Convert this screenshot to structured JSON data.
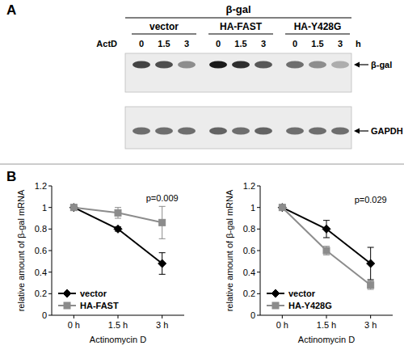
{
  "panel_labels": [
    "A",
    "B"
  ],
  "blot": {
    "probe_header": "β-gal",
    "groups": [
      "vector",
      "HA-FAST",
      "HA-Y428G"
    ],
    "treatment_label": "ActD",
    "times": [
      0,
      1.5,
      3
    ],
    "time_unit": "h",
    "bands": [
      {
        "label": "β-gal",
        "intensities": [
          0.8,
          0.75,
          0.45,
          1.0,
          0.9,
          0.7,
          0.6,
          0.45,
          0.3
        ]
      },
      {
        "label": "GAPDH",
        "intensities": [
          0.6,
          0.6,
          0.6,
          0.65,
          0.6,
          0.65,
          0.6,
          0.6,
          0.6
        ]
      }
    ]
  },
  "chart_data": [
    {
      "type": "line",
      "categories": [
        "0 h",
        "1.5 h",
        "3 h"
      ],
      "x_label": "Actinomycin D",
      "y_label": "relative amount of β-gal mRNA",
      "ylim": [
        0,
        1.2
      ],
      "yticks": [
        0,
        0.2,
        0.4,
        0.6,
        0.8,
        1,
        1.2
      ],
      "annotation": "p=0.009",
      "legend": "lower left",
      "series": [
        {
          "name": "vector",
          "color": "#000000",
          "marker": "diamond",
          "values": [
            1,
            0.8,
            0.48
          ],
          "errors": [
            0,
            0.02,
            0.1
          ]
        },
        {
          "name": "HA-FAST",
          "color": "#8c8c8c",
          "marker": "square",
          "values": [
            1,
            0.95,
            0.86
          ],
          "errors": [
            0,
            0.05,
            0.15
          ]
        }
      ]
    },
    {
      "type": "line",
      "categories": [
        "0 h",
        "1.5 h",
        "3 h"
      ],
      "x_label": "Actinomycin D",
      "y_label": "relative amount of β-gal mRNA",
      "ylim": [
        0,
        1.2
      ],
      "yticks": [
        0,
        0.2,
        0.4,
        0.6,
        0.8,
        1,
        1.2
      ],
      "annotation": "p=0.029",
      "legend": "lower left",
      "series": [
        {
          "name": "vector",
          "color": "#000000",
          "marker": "diamond",
          "values": [
            1,
            0.8,
            0.48
          ],
          "errors": [
            0,
            0.08,
            0.15
          ]
        },
        {
          "name": "HA-Y428G",
          "color": "#8c8c8c",
          "marker": "square",
          "values": [
            1,
            0.6,
            0.28
          ],
          "errors": [
            0,
            0.04,
            0.04
          ]
        }
      ]
    }
  ]
}
